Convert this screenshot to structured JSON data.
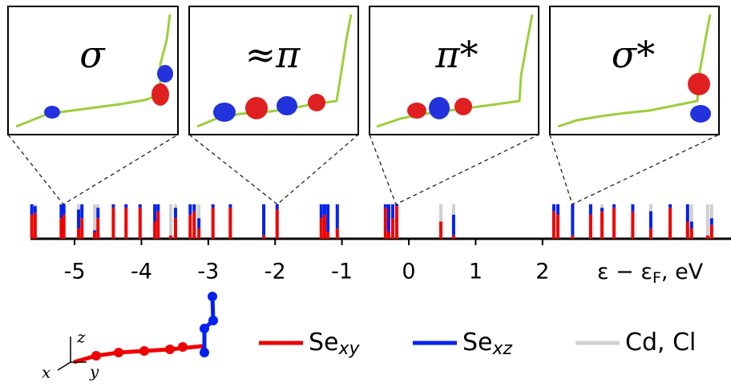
{
  "chart_data": {
    "type": "bar",
    "stacked": true,
    "insets": [
      "σ",
      "≈π",
      "π*",
      "σ*"
    ],
    "xlabel": [
      "ε − ε",
      "F",
      ", eV"
    ],
    "xlim": [
      -5.66,
      4.82
    ],
    "xticks": [
      -5,
      -4,
      -3,
      -2,
      -1,
      0,
      1,
      2
    ],
    "x": [
      -5.64,
      -5.59,
      -5.2,
      -5.16,
      -4.94,
      -4.89,
      -4.7,
      -4.65,
      -4.42,
      -4.23,
      -4.02,
      -3.8,
      -3.75,
      -3.56,
      -3.49,
      -3.27,
      -3.21,
      -3.14,
      -2.93,
      -2.67,
      -2.17,
      -1.97,
      -1.31,
      -1.26,
      -1.21,
      -1.07,
      -0.35,
      -0.3,
      -0.24,
      -0.18,
      0.48,
      0.67,
      2.17,
      2.23,
      2.45,
      2.72,
      2.89,
      3.07,
      3.35,
      3.62,
      3.91,
      4.17,
      4.23,
      4.47,
      4.53
    ],
    "series": [
      {
        "name": "Se",
        "subscript": "xy",
        "color": "#ee0000",
        "values": [
          0.7,
          0.75,
          0.6,
          0.7,
          0.3,
          0.6,
          0.2,
          0.6,
          0.9,
          0.9,
          0.9,
          0.5,
          0.8,
          0.1,
          0.6,
          0.7,
          0.8,
          0.3,
          0.9,
          0.9,
          0.1,
          0.85,
          0.6,
          0.7,
          0.2,
          0.3,
          0.9,
          0.2,
          0.6,
          0.95,
          0.5,
          0.1,
          0.8,
          0.7,
          0.1,
          0.7,
          0.8,
          0.9,
          0.8,
          0.3,
          0.9,
          0.5,
          0.3,
          0.1,
          0.4
        ]
      },
      {
        "name": "Se",
        "subscript": "xz",
        "color": "#0022ee",
        "values": [
          0.3,
          0.2,
          0.4,
          0.3,
          0.55,
          0.4,
          0.05,
          0.3,
          0.1,
          0.1,
          0.1,
          0.5,
          0.2,
          0,
          0.3,
          0.3,
          0.2,
          0.3,
          0.1,
          0.1,
          0.9,
          0.15,
          0.4,
          0.3,
          0.8,
          0.7,
          0.1,
          0.8,
          0.4,
          0.05,
          0,
          0.6,
          0.2,
          0.3,
          0.9,
          0.3,
          0.1,
          0.1,
          0.2,
          0.5,
          0.1,
          0.5,
          0.2,
          0,
          0.2
        ]
      },
      {
        "name": "Cd, Cl",
        "color": "#d0d0d0",
        "values": [
          0,
          0.05,
          0,
          0,
          0.15,
          0,
          0.75,
          0.1,
          0,
          0,
          0,
          0,
          0,
          0.9,
          0.1,
          0,
          0,
          0.4,
          0,
          0,
          0,
          0,
          0,
          0,
          0,
          0,
          0,
          0,
          0,
          0,
          0.5,
          0.3,
          0,
          0,
          0,
          0,
          0.1,
          0,
          0,
          0.2,
          0,
          0,
          0.5,
          0.9,
          0.4
        ]
      }
    ]
  },
  "axes_sketch": {
    "x": "x",
    "y": "y",
    "z": "z"
  }
}
